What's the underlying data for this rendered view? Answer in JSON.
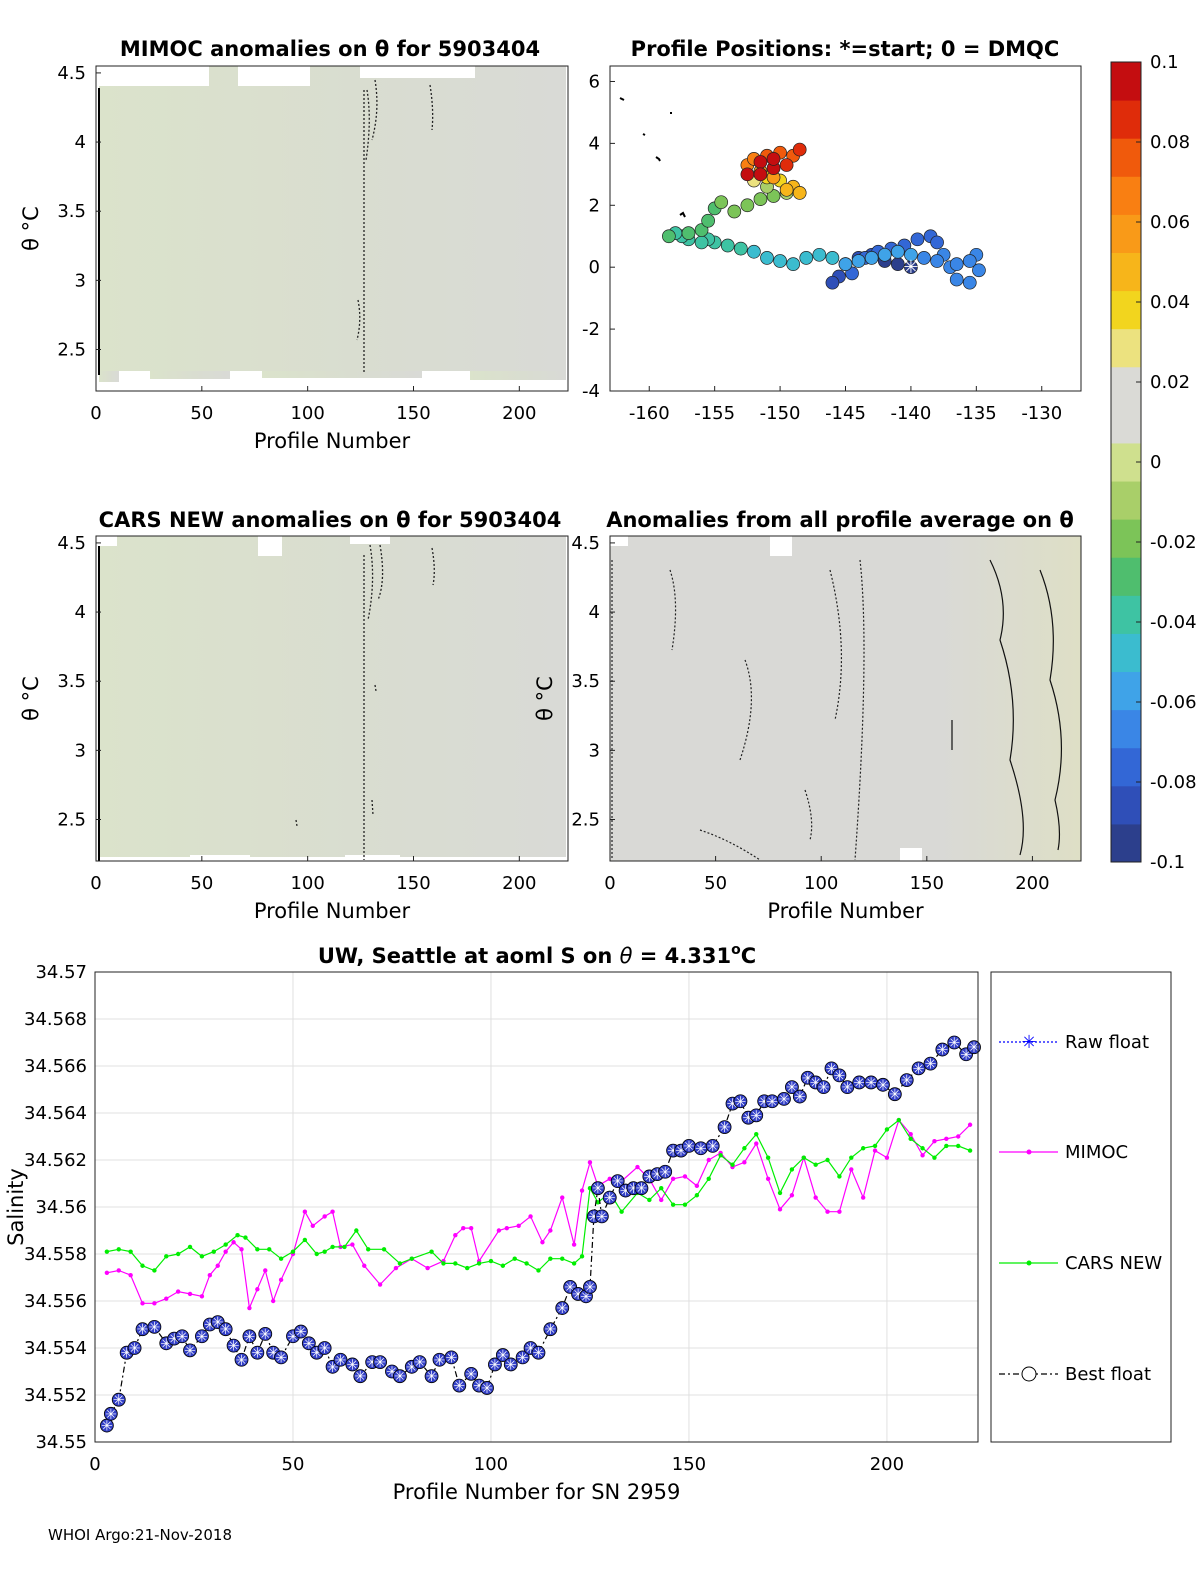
{
  "footer": "WHOI Argo:21-Nov-2018",
  "colorbar": {
    "ticks": [
      "0.1",
      "0.08",
      "0.06",
      "0.04",
      "0.02",
      "0",
      "-0.02",
      "-0.04",
      "-0.06",
      "-0.08",
      "-0.1"
    ],
    "range": [
      -0.1,
      0.1
    ],
    "colors": [
      "#2c3f8c",
      "#2f4fb8",
      "#3367d6",
      "#3a86e6",
      "#3fa3e8",
      "#3bbccf",
      "#3ec3a3",
      "#4fbe6e",
      "#7cc458",
      "#a9cf69",
      "#cfe08e",
      "#dadad6",
      "#dadad6",
      "#ece27f",
      "#f2d51e",
      "#f7b51a",
      "#f99a18",
      "#f97f12",
      "#f05a0c",
      "#df2c0a",
      "#c40d10"
    ]
  },
  "chart_data": [
    {
      "id": "mimoc",
      "type": "heatmap",
      "title": "MIMOC anomalies on θ  for 5903404",
      "xlabel": "Profile Number",
      "ylabel": "θ °C",
      "xlim": [
        0,
        223
      ],
      "ylim": [
        2.2,
        4.55
      ],
      "xticks": [
        0,
        50,
        100,
        150,
        200
      ],
      "yticks": [
        2.5,
        3,
        3.5,
        4,
        4.5
      ],
      "background_anomaly": -0.005
    },
    {
      "id": "positions",
      "type": "scatter",
      "title": "Profile Positions: *=start; 0 = DMQC",
      "xlim": [
        -163,
        -127
      ],
      "ylim": [
        -4,
        6.5
      ],
      "xticks": [
        -160,
        -155,
        -150,
        -145,
        -140,
        -135,
        -130
      ],
      "yticks": [
        -4,
        -2,
        0,
        2,
        4,
        6
      ],
      "start_marker": [
        -140,
        0
      ],
      "points": [
        [
          -140,
          0,
          -0.095
        ],
        [
          -141,
          0.1,
          -0.094
        ],
        [
          -142,
          0.2,
          -0.092
        ],
        [
          -143,
          0.4,
          -0.09
        ],
        [
          -144,
          0.3,
          -0.088
        ],
        [
          -145,
          0.1,
          -0.086
        ],
        [
          -145.5,
          -0.3,
          -0.084
        ],
        [
          -146,
          -0.5,
          -0.082
        ],
        [
          -144.5,
          -0.2,
          -0.08
        ],
        [
          -143.5,
          0.3,
          -0.078
        ],
        [
          -142.5,
          0.5,
          -0.077
        ],
        [
          -141.5,
          0.6,
          -0.076
        ],
        [
          -140.5,
          0.7,
          -0.075
        ],
        [
          -139.5,
          0.9,
          -0.074
        ],
        [
          -138.5,
          1,
          -0.073
        ],
        [
          -138,
          0.8,
          -0.072
        ],
        [
          -137.5,
          0.4,
          -0.071
        ],
        [
          -137,
          0,
          -0.07
        ],
        [
          -136.5,
          -0.4,
          -0.069
        ],
        [
          -135.5,
          -0.5,
          -0.068
        ],
        [
          -134.8,
          -0.1,
          -0.067
        ],
        [
          -135,
          0.4,
          -0.066
        ],
        [
          -135.5,
          0.2,
          -0.065
        ],
        [
          -136.5,
          0.1,
          -0.064
        ],
        [
          -138,
          0.2,
          -0.063
        ],
        [
          -139,
          0.3,
          -0.062
        ],
        [
          -140,
          0.4,
          -0.061
        ],
        [
          -141,
          0.5,
          -0.06
        ],
        [
          -142,
          0.4,
          -0.059
        ],
        [
          -143,
          0.3,
          -0.058
        ],
        [
          -144,
          0.2,
          -0.056
        ],
        [
          -145,
          0.1,
          -0.054
        ],
        [
          -146,
          0.3,
          -0.052
        ],
        [
          -147,
          0.4,
          -0.05
        ],
        [
          -148,
          0.3,
          -0.048
        ],
        [
          -149,
          0.1,
          -0.046
        ],
        [
          -150,
          0.2,
          -0.045
        ],
        [
          -151,
          0.3,
          -0.044
        ],
        [
          -152,
          0.5,
          -0.043
        ],
        [
          -153,
          0.6,
          -0.042
        ],
        [
          -154,
          0.7,
          -0.041
        ],
        [
          -155,
          0.8,
          -0.04
        ],
        [
          -155.5,
          0.9,
          -0.038
        ],
        [
          -156,
          0.8,
          -0.037
        ],
        [
          -157,
          0.9,
          -0.036
        ],
        [
          -157.5,
          1,
          -0.035
        ],
        [
          -158,
          1.1,
          -0.034
        ],
        [
          -158.5,
          1,
          -0.033
        ],
        [
          -157,
          1.1,
          -0.031
        ],
        [
          -156,
          1.2,
          -0.029
        ],
        [
          -155.5,
          1.5,
          -0.027
        ],
        [
          -155,
          1.9,
          -0.025
        ],
        [
          -154.5,
          2.1,
          -0.023
        ],
        [
          -153.5,
          1.8,
          -0.021
        ],
        [
          -152.5,
          2,
          -0.019
        ],
        [
          -151.5,
          2.2,
          -0.017
        ],
        [
          -150.5,
          2.3,
          -0.015
        ],
        [
          -149.5,
          2.4,
          -0.013
        ],
        [
          -151,
          2.6,
          -0.011
        ],
        [
          -152,
          2.8,
          0.032
        ],
        [
          -151,
          2.9,
          0.036
        ],
        [
          -150,
          2.8,
          0.04
        ],
        [
          -149,
          2.6,
          0.044
        ],
        [
          -148.5,
          2.4,
          0.048
        ],
        [
          -149.5,
          2.5,
          0.052
        ],
        [
          -150.5,
          2.9,
          0.056
        ],
        [
          -151.5,
          3.1,
          0.06
        ],
        [
          -152.5,
          3.3,
          0.064
        ],
        [
          -152,
          3.5,
          0.068
        ],
        [
          -151,
          3.6,
          0.072
        ],
        [
          -150,
          3.7,
          0.076
        ],
        [
          -149,
          3.6,
          0.08
        ],
        [
          -148.5,
          3.8,
          0.084
        ],
        [
          -149.5,
          3.3,
          0.088
        ],
        [
          -150.5,
          3.2,
          0.092
        ],
        [
          -151.5,
          3.4,
          0.095
        ],
        [
          -152.5,
          3,
          0.098
        ],
        [
          -151.5,
          3,
          0.1
        ],
        [
          -150.5,
          3.5,
          0.1
        ]
      ]
    },
    {
      "id": "cars",
      "type": "heatmap",
      "title": "CARS NEW anomalies on θ for 5903404",
      "xlabel": "Profile Number",
      "ylabel": "θ °C",
      "xlim": [
        0,
        223
      ],
      "ylim": [
        2.2,
        4.55
      ],
      "xticks": [
        0,
        50,
        100,
        150,
        200
      ],
      "yticks": [
        2.5,
        3,
        3.5,
        4,
        4.5
      ],
      "background_anomaly": -0.004
    },
    {
      "id": "avg",
      "type": "heatmap",
      "title": "Anomalies from all profile average on θ",
      "xlabel": "Profile Number",
      "ylabel": "θ °C",
      "xlim": [
        0,
        223
      ],
      "ylim": [
        2.2,
        4.55
      ],
      "xticks": [
        0,
        50,
        100,
        150,
        200
      ],
      "yticks": [
        2.5,
        3,
        3.5,
        4,
        4.5
      ],
      "background_anomaly": 0
    },
    {
      "id": "salinity",
      "type": "line",
      "title_main": "UW, Seattle at aoml S on ",
      "title_theta": "θ",
      "title_value": " = 4.331",
      "title_sup": "o",
      "title_unit": "C",
      "xlabel": "Profile Number for SN 2959",
      "ylabel": "Salinity",
      "xlim": [
        0,
        223
      ],
      "ylim": [
        34.55,
        34.57
      ],
      "xticks": [
        0,
        50,
        100,
        150,
        200
      ],
      "yticks": [
        "34.55",
        "34.552",
        "34.554",
        "34.556",
        "34.558",
        "34.56",
        "34.562",
        "34.564",
        "34.566",
        "34.568",
        "34.57"
      ],
      "legend": [
        "Raw float",
        "MIMOC",
        "CARS NEW",
        "Best float"
      ],
      "series": [
        {
          "name": "Best float",
          "color": "#000000",
          "x": [
            3,
            4,
            6,
            8,
            10,
            12,
            15,
            18,
            20,
            22,
            24,
            27,
            29,
            31,
            33,
            35,
            37,
            39,
            41,
            43,
            45,
            47,
            50,
            52,
            54,
            56,
            58,
            60,
            62,
            65,
            67,
            70,
            72,
            75,
            77,
            80,
            82,
            85,
            87,
            90,
            92,
            95,
            97,
            99,
            101,
            103,
            105,
            108,
            110,
            112,
            115,
            118,
            120,
            122,
            124,
            125,
            126,
            127,
            128,
            130,
            132,
            134,
            136,
            138,
            140,
            142,
            144,
            146,
            148,
            150,
            153,
            156,
            159,
            161,
            163,
            165,
            167,
            169,
            171,
            174,
            176,
            178,
            180,
            182,
            184,
            186,
            188,
            190,
            193,
            196,
            199,
            202,
            205,
            208,
            211,
            214,
            217,
            220,
            222
          ],
          "y": [
            34.5507,
            34.5512,
            34.5518,
            34.5538,
            34.554,
            34.5548,
            34.5549,
            34.5542,
            34.5544,
            34.5545,
            34.5539,
            34.5545,
            34.555,
            34.5551,
            34.5548,
            34.5541,
            34.5535,
            34.5545,
            34.5538,
            34.5546,
            34.5538,
            34.5536,
            34.5545,
            34.5547,
            34.5542,
            34.5538,
            34.554,
            34.5532,
            34.5535,
            34.5533,
            34.5528,
            34.5534,
            34.5534,
            34.553,
            34.5528,
            34.5532,
            34.5534,
            34.5528,
            34.5535,
            34.5536,
            34.5524,
            34.5529,
            34.5524,
            34.5523,
            34.5533,
            34.5537,
            34.5533,
            34.5536,
            34.554,
            34.5538,
            34.5548,
            34.5557,
            34.5566,
            34.5563,
            34.5562,
            34.5566,
            34.5596,
            34.5608,
            34.5596,
            34.5604,
            34.5611,
            34.5607,
            34.5608,
            34.5608,
            34.5613,
            34.5614,
            34.5615,
            34.5624,
            34.5624,
            34.5626,
            34.5625,
            34.5626,
            34.5634,
            34.5644,
            34.5645,
            34.5638,
            34.5639,
            34.5645,
            34.5645,
            34.5646,
            34.5651,
            34.5647,
            34.5655,
            34.5653,
            34.5651,
            34.5659,
            34.5656,
            34.5651,
            34.5653,
            34.5653,
            34.5652,
            34.5648,
            34.5654,
            34.5659,
            34.5661,
            34.5667,
            34.567,
            34.5665,
            34.5668
          ]
        },
        {
          "name": "MIMOC",
          "color": "#ff00ff",
          "x": [
            3,
            6,
            9,
            12,
            15,
            18,
            21,
            24,
            27,
            29,
            31,
            33,
            35,
            37,
            39,
            41,
            43,
            45,
            47,
            50,
            53,
            55,
            58,
            60,
            62,
            65,
            68,
            72,
            76,
            80,
            84,
            88,
            91,
            93,
            95,
            97,
            102,
            104,
            107,
            110,
            113,
            115,
            118,
            121,
            123,
            125,
            127,
            130,
            133,
            137,
            140,
            143,
            146,
            149,
            152,
            155,
            158,
            161,
            164,
            167,
            170,
            173,
            176,
            179,
            182,
            185,
            188,
            191,
            194,
            197,
            200,
            203,
            206,
            209,
            212,
            215,
            218,
            221
          ],
          "y": [
            34.5572,
            34.5573,
            34.5571,
            34.5559,
            34.5559,
            34.5561,
            34.5564,
            34.5563,
            34.5562,
            34.5571,
            34.5575,
            34.5581,
            34.5585,
            34.5582,
            34.5557,
            34.5565,
            34.5573,
            34.556,
            34.5569,
            34.558,
            34.5598,
            34.5592,
            34.5596,
            34.5598,
            34.5583,
            34.5584,
            34.5575,
            34.5567,
            34.5574,
            34.5578,
            34.5574,
            34.5577,
            34.5588,
            34.5591,
            34.5591,
            34.5577,
            34.559,
            34.5591,
            34.5592,
            34.5596,
            34.5585,
            34.559,
            34.5604,
            34.5584,
            34.5607,
            34.5619,
            34.5609,
            34.5612,
            34.5611,
            34.5617,
            34.5612,
            34.5603,
            34.5612,
            34.5613,
            34.5609,
            34.562,
            34.5623,
            34.5617,
            34.5619,
            34.5627,
            34.5612,
            34.5599,
            34.5605,
            34.5621,
            34.5604,
            34.5598,
            34.5598,
            34.5616,
            34.5604,
            34.5624,
            34.5621,
            34.5637,
            34.5631,
            34.5622,
            34.5628,
            34.5629,
            34.563,
            34.5635
          ]
        },
        {
          "name": "CARS NEW",
          "color": "#00ee00",
          "x": [
            3,
            6,
            9,
            12,
            15,
            18,
            21,
            24,
            27,
            30,
            33,
            36,
            38,
            41,
            44,
            47,
            50,
            53,
            56,
            58,
            60,
            63,
            66,
            69,
            73,
            77,
            80,
            85,
            88,
            91,
            94,
            97,
            100,
            103,
            106,
            109,
            112,
            115,
            118,
            121,
            123,
            125,
            127,
            130,
            133,
            137,
            140,
            143,
            146,
            149,
            152,
            155,
            158,
            161,
            164,
            167,
            170,
            173,
            176,
            179,
            182,
            185,
            188,
            191,
            194,
            197,
            200,
            203,
            206,
            209,
            212,
            215,
            218,
            221
          ],
          "y": [
            34.5581,
            34.5582,
            34.5581,
            34.5575,
            34.5573,
            34.5579,
            34.558,
            34.5583,
            34.5579,
            34.5581,
            34.5584,
            34.5588,
            34.5587,
            34.5582,
            34.5582,
            34.5578,
            34.5581,
            34.5586,
            34.558,
            34.5581,
            34.5583,
            34.5583,
            34.559,
            34.5582,
            34.5582,
            34.5576,
            34.5578,
            34.5581,
            34.5576,
            34.5576,
            34.5574,
            34.5576,
            34.5577,
            34.5575,
            34.5578,
            34.5576,
            34.5573,
            34.5578,
            34.5578,
            34.5576,
            34.5579,
            34.5608,
            34.5602,
            34.5606,
            34.5598,
            34.5606,
            34.5603,
            34.5608,
            34.5601,
            34.5601,
            34.5605,
            34.5612,
            34.5622,
            34.5618,
            34.5625,
            34.5631,
            34.5621,
            34.5606,
            34.5616,
            34.5621,
            34.5618,
            34.562,
            34.5613,
            34.5621,
            34.5625,
            34.5626,
            34.5633,
            34.5637,
            34.5629,
            34.5625,
            34.5621,
            34.5626,
            34.5626,
            34.5624
          ]
        }
      ]
    }
  ]
}
